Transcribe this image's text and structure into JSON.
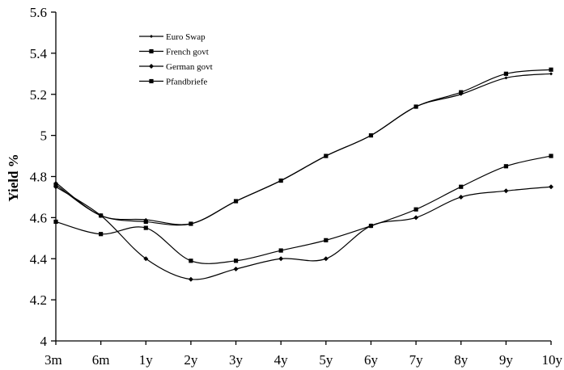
{
  "chart_data": {
    "type": "line",
    "title": "",
    "xlabel": "",
    "ylabel": "Yield %",
    "categories": [
      "3m",
      "6m",
      "1y",
      "2y",
      "3y",
      "4y",
      "5y",
      "6y",
      "7y",
      "8y",
      "9y",
      "10y"
    ],
    "yticks": [
      "4",
      "4.2",
      "4.4",
      "4.6",
      "4.8",
      "5",
      "5.2",
      "5.4",
      "5.6"
    ],
    "ylim": [
      4,
      5.6
    ],
    "grid": false,
    "legend_position": "top-left",
    "series": [
      {
        "name": "Euro Swap",
        "marker": "diamond-small",
        "values": [
          4.77,
          4.61,
          4.59,
          4.57,
          4.68,
          4.78,
          4.9,
          5.0,
          5.14,
          5.2,
          5.28,
          5.3
        ]
      },
      {
        "name": "French govt",
        "marker": "square",
        "values": [
          4.58,
          4.52,
          4.55,
          4.39,
          4.39,
          4.44,
          4.49,
          4.56,
          4.64,
          4.75,
          4.85,
          4.9
        ]
      },
      {
        "name": "German govt",
        "marker": "diamond",
        "values": [
          4.75,
          4.61,
          4.4,
          4.3,
          4.35,
          4.4,
          4.4,
          4.56,
          4.6,
          4.7,
          4.73,
          4.75
        ]
      },
      {
        "name": "Pfandbriefe",
        "marker": "square",
        "values": [
          4.76,
          4.61,
          4.58,
          4.57,
          4.68,
          4.78,
          4.9,
          5.0,
          5.14,
          5.21,
          5.3,
          5.32
        ]
      }
    ]
  }
}
